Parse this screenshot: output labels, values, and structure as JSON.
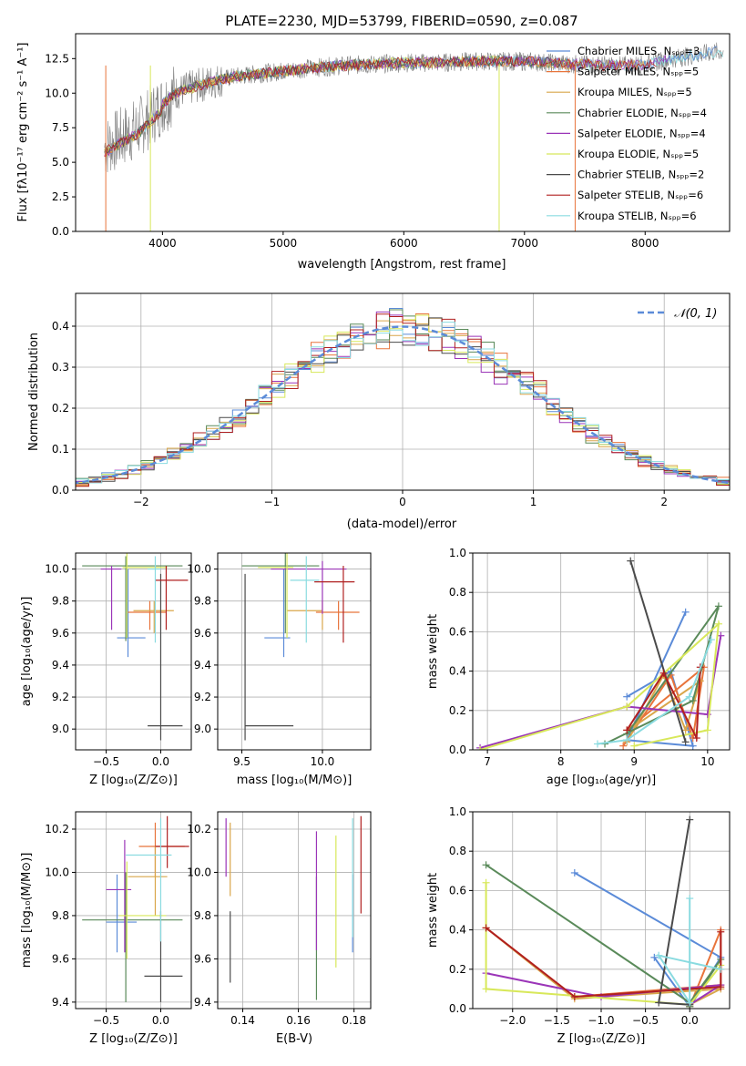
{
  "colors": {
    "c0": "#5b8bd8",
    "c1": "#e8743b",
    "c2": "#d9a64a",
    "c3": "#5a8a5a",
    "c4": "#9b35b8",
    "c5": "#d8e85a",
    "c6": "#4a4a4a",
    "c7": "#b02020",
    "c8": "#8adbe0",
    "gray": "#808080"
  },
  "chart_data": [
    {
      "type": "line",
      "title": "PLATE=2230, MJD=53799, FIBERID=0590, z=0.087",
      "xlabel": "wavelength [Angstrom, rest frame]",
      "ylabel": "Flux [fλ10⁻¹⁷ erg cm⁻² s⁻¹ A⁻¹]",
      "xlim": [
        3280,
        8700
      ],
      "ylim": [
        0,
        14.3
      ],
      "xticks": [
        "4000",
        "5000",
        "6000",
        "7000",
        "8000"
      ],
      "yticks": [
        "0.0",
        "2.5",
        "5.0",
        "7.5",
        "10.0",
        "12.5"
      ],
      "legend": "right",
      "series": [
        {
          "name": "Chabrier MILES, Nₛₚₚ=3",
          "color": "c0"
        },
        {
          "name": "Salpeter MILES, Nₛₚₚ=5",
          "color": "c1"
        },
        {
          "name": "Kroupa MILES, Nₛₚₚ=5",
          "color": "c2"
        },
        {
          "name": "Chabrier ELODIE, Nₛₚₚ=4",
          "color": "c3"
        },
        {
          "name": "Salpeter ELODIE, Nₛₚₚ=4",
          "color": "c4"
        },
        {
          "name": "Kroupa ELODIE, Nₛₚₚ=5",
          "color": "c5"
        },
        {
          "name": "Chabrier STELIB, Nₛₚₚ=2",
          "color": "c6"
        },
        {
          "name": "Salpeter STELIB, Nₛₚₚ=6",
          "color": "c7"
        },
        {
          "name": "Kroupa STELIB, Nₛₚₚ=6",
          "color": "c8"
        }
      ],
      "continuum_x": [
        3500,
        3600,
        3700,
        3800,
        3900,
        4000,
        4100,
        4200,
        4400,
        4600,
        4800,
        5000,
        5200,
        5500,
        5800,
        6000,
        6300,
        6600,
        7000,
        7400,
        7800,
        8000,
        8300,
        8600
      ],
      "continuum_y": [
        6.0,
        6.5,
        7.0,
        7.5,
        8.3,
        9.2,
        10.0,
        10.3,
        10.8,
        11.2,
        11.4,
        11.6,
        11.8,
        12.0,
        12.1,
        12.2,
        12.2,
        12.3,
        12.3,
        12.1,
        12.0,
        12.1,
        12.6,
        13.0
      ]
    },
    {
      "type": "line",
      "xlabel": "(data-model)/error",
      "ylabel": "Normed distribution",
      "xlim": [
        -2.5,
        2.5
      ],
      "ylim": [
        0,
        0.48
      ],
      "xticks": [
        "−2",
        "−1",
        "0",
        "1",
        "2"
      ],
      "yticks": [
        "0.0",
        "0.1",
        "0.2",
        "0.3",
        "0.4"
      ],
      "grid": true,
      "legend": "top-right",
      "legend_label": "𝒩(0, 1)",
      "series_line": {
        "mu": 0,
        "sigma": 1
      }
    },
    {
      "type": "scatter",
      "xlabel": "Z [log₁₀(Z/Z⊙)]",
      "ylabel": "age  [log₁₀(age/yr)]",
      "xlim": [
        -0.78,
        0.28
      ],
      "ylim": [
        8.87,
        10.1
      ],
      "xticks": [
        {
          "v": -0.5,
          "t": "−0.5"
        },
        {
          "v": 0,
          "t": "0.0"
        }
      ],
      "yticks": [
        {
          "v": 9.0,
          "t": "9.0"
        },
        {
          "v": 9.2,
          "t": "9.2"
        },
        {
          "v": 9.4,
          "t": "9.4"
        },
        {
          "v": 9.6,
          "t": "9.6"
        },
        {
          "v": 9.8,
          "t": "9.8"
        },
        {
          "v": 10.0,
          "t": "10.0"
        }
      ],
      "points": [
        {
          "x": -0.3,
          "y": 9.57,
          "xe": [
            -0.4,
            -0.14
          ],
          "ye": [
            9.45,
            10.0
          ],
          "c": "c0"
        },
        {
          "x": -0.1,
          "y": 9.73,
          "xe": [
            -0.3,
            0.05
          ],
          "ye": [
            9.62,
            9.8
          ],
          "c": "c1"
        },
        {
          "x": -0.06,
          "y": 9.74,
          "xe": [
            -0.25,
            0.12
          ],
          "ye": [
            9.6,
            9.8
          ],
          "c": "c2"
        },
        {
          "x": -0.32,
          "y": 10.02,
          "xe": [
            -0.72,
            0.2
          ],
          "ye": [
            9.55,
            10.08
          ],
          "c": "c3"
        },
        {
          "x": -0.45,
          "y": 10.0,
          "xe": [
            -0.55,
            -0.36
          ],
          "ye": [
            9.62,
            10.02
          ],
          "c": "c4"
        },
        {
          "x": -0.31,
          "y": 10.01,
          "xe": [
            -0.35,
            0.06
          ],
          "ye": [
            9.57,
            10.12
          ],
          "c": "c5"
        },
        {
          "x": 0.0,
          "y": 9.02,
          "xe": [
            -0.12,
            0.2
          ],
          "ye": [
            8.93,
            9.97
          ],
          "c": "c6"
        },
        {
          "x": 0.05,
          "y": 9.93,
          "xe": [
            -0.05,
            0.25
          ],
          "ye": [
            9.62,
            10.02
          ],
          "c": "c7"
        },
        {
          "x": -0.05,
          "y": 10.0,
          "xe": [
            -0.12,
            0.0
          ],
          "ye": [
            9.54,
            10.08
          ],
          "c": "c8"
        }
      ]
    },
    {
      "type": "scatter",
      "xlabel": "mass [log₁₀(M/M⊙)]",
      "xlim": [
        9.35,
        10.3
      ],
      "ylim": [
        8.87,
        10.1
      ],
      "xticks": [
        {
          "v": 9.5,
          "t": "9.5"
        },
        {
          "v": 10.0,
          "t": "10.0"
        }
      ],
      "yticks": [
        {
          "v": 9.0,
          "t": "9.0"
        },
        {
          "v": 9.2,
          "t": "9.2"
        },
        {
          "v": 9.4,
          "t": "9.4"
        },
        {
          "v": 9.6,
          "t": "9.6"
        },
        {
          "v": 9.8,
          "t": "9.8"
        },
        {
          "v": 10.0,
          "t": "10.0"
        }
      ],
      "points": [
        {
          "x": 9.76,
          "y": 9.57,
          "xe": [
            9.64,
            9.8
          ],
          "ye": [
            9.45,
            10.0
          ],
          "c": "c0"
        },
        {
          "x": 10.1,
          "y": 9.73,
          "xe": [
            9.96,
            10.23
          ],
          "ye": [
            9.62,
            9.8
          ],
          "c": "c1"
        },
        {
          "x": 10.0,
          "y": 9.74,
          "xe": [
            9.78,
            10.0
          ],
          "ye": [
            9.62,
            9.8
          ],
          "c": "c2"
        },
        {
          "x": 9.77,
          "y": 10.02,
          "xe": [
            9.5,
            9.98
          ],
          "ye": [
            9.6,
            10.1
          ],
          "c": "c3"
        },
        {
          "x": 10.0,
          "y": 10.0,
          "xe": [
            9.68,
            10.15
          ],
          "ye": [
            9.72,
            10.05
          ],
          "c": "c4"
        },
        {
          "x": 9.78,
          "y": 10.01,
          "xe": [
            9.6,
            9.82
          ],
          "ye": [
            9.57,
            10.12
          ],
          "c": "c5"
        },
        {
          "x": 9.52,
          "y": 9.02,
          "xe": [
            9.52,
            9.82
          ],
          "ye": [
            8.93,
            9.97
          ],
          "c": "c6"
        },
        {
          "x": 10.13,
          "y": 9.92,
          "xe": [
            9.95,
            10.2
          ],
          "ye": [
            9.54,
            10.02
          ],
          "c": "c7"
        },
        {
          "x": 9.9,
          "y": 9.93,
          "xe": [
            9.8,
            9.98
          ],
          "ye": [
            9.54,
            10.08
          ],
          "c": "c8"
        }
      ]
    },
    {
      "type": "line",
      "xlabel": "age  [log₁₀(age/yr)]",
      "ylabel": "mass weight",
      "xlim": [
        6.8,
        10.3
      ],
      "ylim": [
        0,
        1.0
      ],
      "xticks": [
        {
          "v": 7,
          "t": "7"
        },
        {
          "v": 8,
          "t": "8"
        },
        {
          "v": 9,
          "t": "9"
        },
        {
          "v": 10,
          "t": "10"
        }
      ],
      "yticks": [
        {
          "v": 0,
          "t": "0.0"
        },
        {
          "v": 0.2,
          "t": "0.2"
        },
        {
          "v": 0.4,
          "t": "0.4"
        },
        {
          "v": 0.6,
          "t": "0.6"
        },
        {
          "v": 0.8,
          "t": "0.8"
        },
        {
          "v": 1.0,
          "t": "1.0"
        }
      ],
      "grid": true,
      "series": [
        {
          "c": "c0",
          "x": [
            8.9,
            9.5,
            9.8,
            8.9,
            9.7
          ],
          "y": [
            0.27,
            0.4,
            0.02,
            0.05,
            0.7
          ]
        },
        {
          "c": "c1",
          "x": [
            8.85,
            9.5,
            9.8,
            9.95,
            8.9
          ],
          "y": [
            0.02,
            0.38,
            0.06,
            0.42,
            0.1
          ]
        },
        {
          "c": "c2",
          "x": [
            8.9,
            9.4,
            9.7,
            9.9,
            9.0
          ],
          "y": [
            0.04,
            0.38,
            0.1,
            0.35,
            0.12
          ]
        },
        {
          "c": "c3",
          "x": [
            8.6,
            9.8,
            10.15,
            8.9
          ],
          "y": [
            0.03,
            0.25,
            0.73,
            0.08
          ]
        },
        {
          "c": "c4",
          "x": [
            6.9,
            8.9,
            10.0,
            10.18
          ],
          "y": [
            0.01,
            0.22,
            0.18,
            0.58
          ]
        },
        {
          "c": "c5",
          "x": [
            9.0,
            10.0,
            10.15,
            8.9,
            6.9
          ],
          "y": [
            0.02,
            0.1,
            0.64,
            0.22,
            0.0
          ]
        },
        {
          "c": "c6",
          "x": [
            8.95,
            9.7
          ],
          "y": [
            0.96,
            0.04
          ]
        },
        {
          "c": "c7",
          "x": [
            8.9,
            9.4,
            9.85,
            9.9
          ],
          "y": [
            0.1,
            0.39,
            0.06,
            0.42
          ]
        },
        {
          "c": "c8",
          "x": [
            8.5,
            8.9,
            9.75,
            10.05
          ],
          "y": [
            0.03,
            0.05,
            0.27,
            0.56
          ]
        }
      ]
    },
    {
      "type": "scatter",
      "xlabel": "Z [log₁₀(Z/Z⊙)]",
      "ylabel": "mass [log₁₀(M/M⊙)]",
      "xlim": [
        -0.78,
        0.28
      ],
      "ylim": [
        9.37,
        10.28
      ],
      "xticks": [
        {
          "v": -0.5,
          "t": "−0.5"
        },
        {
          "v": 0,
          "t": "0.0"
        }
      ],
      "yticks": [
        {
          "v": 9.4,
          "t": "9.4"
        },
        {
          "v": 9.6,
          "t": "9.6"
        },
        {
          "v": 9.8,
          "t": "9.8"
        },
        {
          "v": 10.0,
          "t": "10.0"
        },
        {
          "v": 10.2,
          "t": "10.2"
        }
      ],
      "points": [
        {
          "x": -0.4,
          "y": 9.77,
          "xe": [
            -0.5,
            -0.22
          ],
          "ye": [
            9.63,
            9.99
          ],
          "c": "c0"
        },
        {
          "x": -0.05,
          "y": 10.12,
          "xe": [
            -0.2,
            0.22
          ],
          "ye": [
            9.98,
            10.23
          ],
          "c": "c1"
        },
        {
          "x": -0.05,
          "y": 9.98,
          "xe": [
            -0.3,
            0.06
          ],
          "ye": [
            9.8,
            10.12
          ],
          "c": "c2"
        },
        {
          "x": -0.32,
          "y": 9.78,
          "xe": [
            -0.72,
            0.2
          ],
          "ye": [
            9.4,
            10.0
          ],
          "c": "c3"
        },
        {
          "x": -0.33,
          "y": 9.92,
          "xe": [
            -0.5,
            -0.27
          ],
          "ye": [
            9.63,
            10.15
          ],
          "c": "c4"
        },
        {
          "x": -0.31,
          "y": 9.8,
          "xe": [
            -0.38,
            0.05
          ],
          "ye": [
            9.6,
            10.05
          ],
          "c": "c5"
        },
        {
          "x": 0.0,
          "y": 9.52,
          "xe": [
            -0.15,
            0.2
          ],
          "ye": [
            9.4,
            9.82
          ],
          "c": "c6"
        },
        {
          "x": 0.06,
          "y": 10.12,
          "xe": [
            -0.05,
            0.26
          ],
          "ye": [
            10.02,
            10.26
          ],
          "c": "c7"
        },
        {
          "x": 0.0,
          "y": 10.08,
          "xe": [
            -0.32,
            0.1
          ],
          "ye": [
            9.68,
            10.25
          ],
          "c": "c8"
        }
      ]
    },
    {
      "type": "scatter",
      "xlabel": "E(B-V)",
      "xlim": [
        0.131,
        0.186
      ],
      "ylim": [
        9.37,
        10.28
      ],
      "xticks": [
        {
          "v": 0.14,
          "t": "0.14"
        },
        {
          "v": 0.16,
          "t": "0.16"
        },
        {
          "v": 0.18,
          "t": "0.18"
        }
      ],
      "yticks": [
        {
          "v": 9.4,
          "t": "9.4"
        },
        {
          "v": 9.6,
          "t": "9.6"
        },
        {
          "v": 9.8,
          "t": "9.8"
        },
        {
          "v": 10.0,
          "t": "10.0"
        },
        {
          "v": 10.2,
          "t": "10.2"
        }
      ],
      "points": [
        {
          "x": 0.1795,
          "y": 9.77,
          "ye": [
            9.63,
            9.99
          ],
          "c": "c0"
        },
        {
          "x": 0.134,
          "y": 10.12,
          "ye": [
            9.98,
            10.25
          ],
          "c": "c4"
        },
        {
          "x": 0.1355,
          "y": 9.98,
          "ye": [
            9.89,
            10.23
          ],
          "c": "c2"
        },
        {
          "x": 0.1665,
          "y": 9.78,
          "ye": [
            9.41,
            9.98
          ],
          "c": "c3"
        },
        {
          "x": 0.1665,
          "y": 9.9,
          "ye": [
            9.64,
            10.19
          ],
          "c": "c4"
        },
        {
          "x": 0.1735,
          "y": 9.8,
          "ye": [
            9.56,
            10.17
          ],
          "c": "c5"
        },
        {
          "x": 0.1355,
          "y": 9.52,
          "ye": [
            9.49,
            9.82
          ],
          "c": "c6"
        },
        {
          "x": 0.1825,
          "y": 10.12,
          "ye": [
            9.81,
            10.26
          ],
          "c": "c7"
        },
        {
          "x": 0.1795,
          "y": 10.08,
          "ye": [
            9.7,
            10.25
          ],
          "c": "c8"
        }
      ]
    },
    {
      "type": "line",
      "xlabel": "Z [log₁₀(Z/Z⊙)]",
      "ylabel": "mass weight",
      "xlim": [
        -2.45,
        0.45
      ],
      "ylim": [
        0,
        1.0
      ],
      "xticks": [
        {
          "v": -2.0,
          "t": "−2.0"
        },
        {
          "v": -1.5,
          "t": "−1.5"
        },
        {
          "v": -1.0,
          "t": "−1.0"
        },
        {
          "v": -0.5,
          "t": "−0.5"
        },
        {
          "v": 0.0,
          "t": "0.0"
        }
      ],
      "yticks": [
        {
          "v": 0,
          "t": "0.0"
        },
        {
          "v": 0.2,
          "t": "0.2"
        },
        {
          "v": 0.4,
          "t": "0.4"
        },
        {
          "v": 0.6,
          "t": "0.6"
        },
        {
          "v": 0.8,
          "t": "0.8"
        },
        {
          "v": 1.0,
          "t": "1.0"
        }
      ],
      "grid": true,
      "series": [
        {
          "c": "c0",
          "x": [
            -1.3,
            0.35,
            0.0,
            -0.4
          ],
          "y": [
            0.69,
            0.26,
            0.01,
            0.26
          ]
        },
        {
          "c": "c1",
          "x": [
            -2.3,
            -1.3,
            0.35,
            0.35,
            0.0
          ],
          "y": [
            0.41,
            0.06,
            0.12,
            0.4,
            0.01
          ]
        },
        {
          "c": "c2",
          "x": [
            -2.3,
            -1.3,
            0.35,
            0.0
          ],
          "y": [
            0.41,
            0.05,
            0.1,
            0.02
          ]
        },
        {
          "c": "c3",
          "x": [
            -2.3,
            0.0,
            0.35,
            0.0
          ],
          "y": [
            0.73,
            0.03,
            0.25,
            0.01
          ]
        },
        {
          "c": "c4",
          "x": [
            -2.3,
            -1.0,
            0.35,
            0.0
          ],
          "y": [
            0.18,
            0.06,
            0.12,
            0.02
          ]
        },
        {
          "c": "c5",
          "x": [
            -2.3,
            -2.3,
            0.0,
            0.35
          ],
          "y": [
            0.64,
            0.1,
            0.02,
            0.22
          ]
        },
        {
          "c": "c6",
          "x": [
            0.0,
            -0.35,
            0.0
          ],
          "y": [
            0.96,
            0.03,
            0.02
          ]
        },
        {
          "c": "c7",
          "x": [
            -2.3,
            -1.3,
            0.35,
            0.35
          ],
          "y": [
            0.41,
            0.06,
            0.11,
            0.39
          ]
        },
        {
          "c": "c8",
          "x": [
            0.0,
            0.0,
            -0.35,
            0.35
          ],
          "y": [
            0.56,
            0.03,
            0.27,
            0.2
          ]
        }
      ]
    }
  ]
}
